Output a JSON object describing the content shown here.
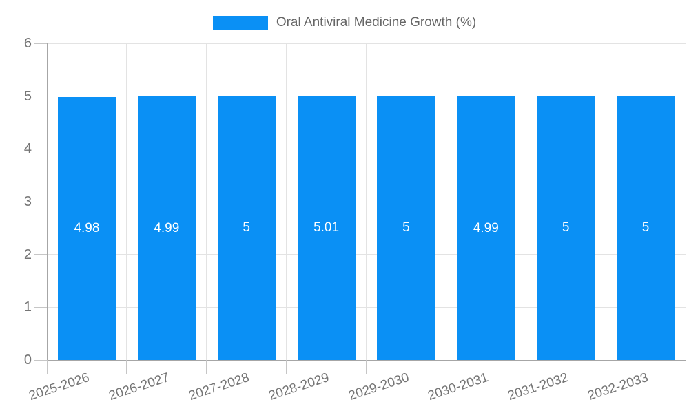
{
  "legend": {
    "label": "Oral Antiviral Medicine Growth (%)"
  },
  "chart_data": {
    "type": "bar",
    "title": "",
    "legend_label": "Oral Antiviral Medicine Growth (%)",
    "legend_position": "top",
    "categories": [
      "2025-2026",
      "2026-2027",
      "2027-2028",
      "2028-2029",
      "2029-2030",
      "2030-2031",
      "2031-2032",
      "2032-2033"
    ],
    "values": [
      4.98,
      4.99,
      5,
      5.01,
      5,
      4.99,
      5,
      5
    ],
    "value_labels": [
      "4.98",
      "4.99",
      "5",
      "5.01",
      "5",
      "4.99",
      "5",
      "5"
    ],
    "xlabel": "",
    "ylabel": "",
    "ylim": [
      0,
      6
    ],
    "yticks": [
      0,
      1,
      2,
      3,
      4,
      5,
      6
    ],
    "grid": true,
    "colors": {
      "bar": "#0a90f5",
      "grid_line": "#e3e3e3",
      "axis_line": "#a6a6a6",
      "tick_mark": "#c6c6c6",
      "tick_text": "#757575",
      "legend_text": "#666666",
      "value_text": "#ffffff"
    }
  }
}
